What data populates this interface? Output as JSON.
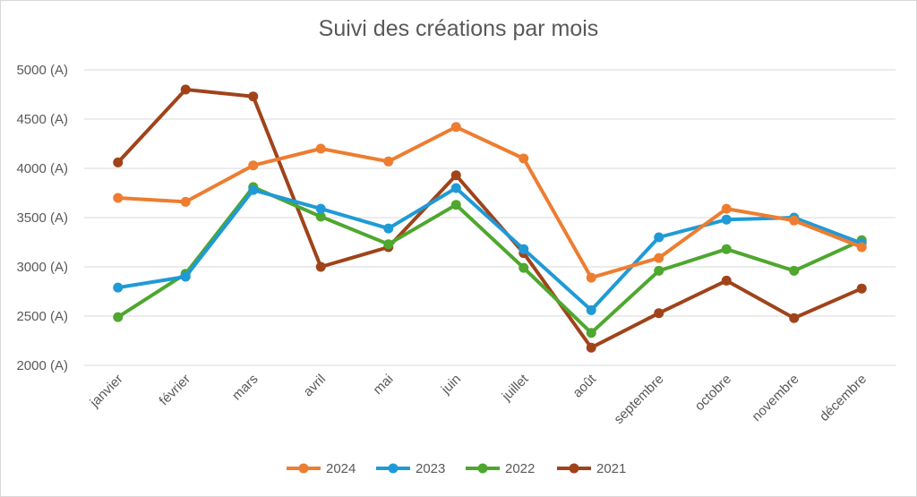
{
  "chart_data": {
    "type": "line",
    "title": "Suivi des créations par mois",
    "categories": [
      "janvier",
      "février",
      "mars",
      "avril",
      "mai",
      "juin",
      "juillet",
      "août",
      "septembre",
      "octobre",
      "novembre",
      "décembre"
    ],
    "ylim": [
      2000,
      5000
    ],
    "yticks": [
      "2000 (A)",
      "2500 (A)",
      "3000 (A)",
      "3500 (A)",
      "4000 (A)",
      "4500 (A)",
      "5000 (A)"
    ],
    "ytick_values": [
      2000,
      2500,
      3000,
      3500,
      4000,
      4500,
      5000
    ],
    "grid": true,
    "legend_position": "bottom",
    "series": [
      {
        "name": "2024",
        "color": "#ed7d31",
        "values": [
          3700,
          3660,
          4030,
          4200,
          4070,
          4420,
          4100,
          2890,
          3090,
          3590,
          3470,
          3200
        ]
      },
      {
        "name": "2023",
        "color": "#1f9ad6",
        "values": [
          2790,
          2900,
          3780,
          3590,
          3390,
          3800,
          3180,
          2560,
          3300,
          3480,
          3500,
          3240
        ]
      },
      {
        "name": "2022",
        "color": "#4ea72e",
        "values": [
          2490,
          2930,
          3810,
          3510,
          3230,
          3630,
          2990,
          2330,
          2960,
          3180,
          2960,
          3270
        ]
      },
      {
        "name": "2021",
        "color": "#a0431a",
        "values": [
          4060,
          4800,
          4730,
          3000,
          3200,
          3930,
          3140,
          2180,
          2530,
          2860,
          2480,
          2780
        ]
      }
    ]
  }
}
